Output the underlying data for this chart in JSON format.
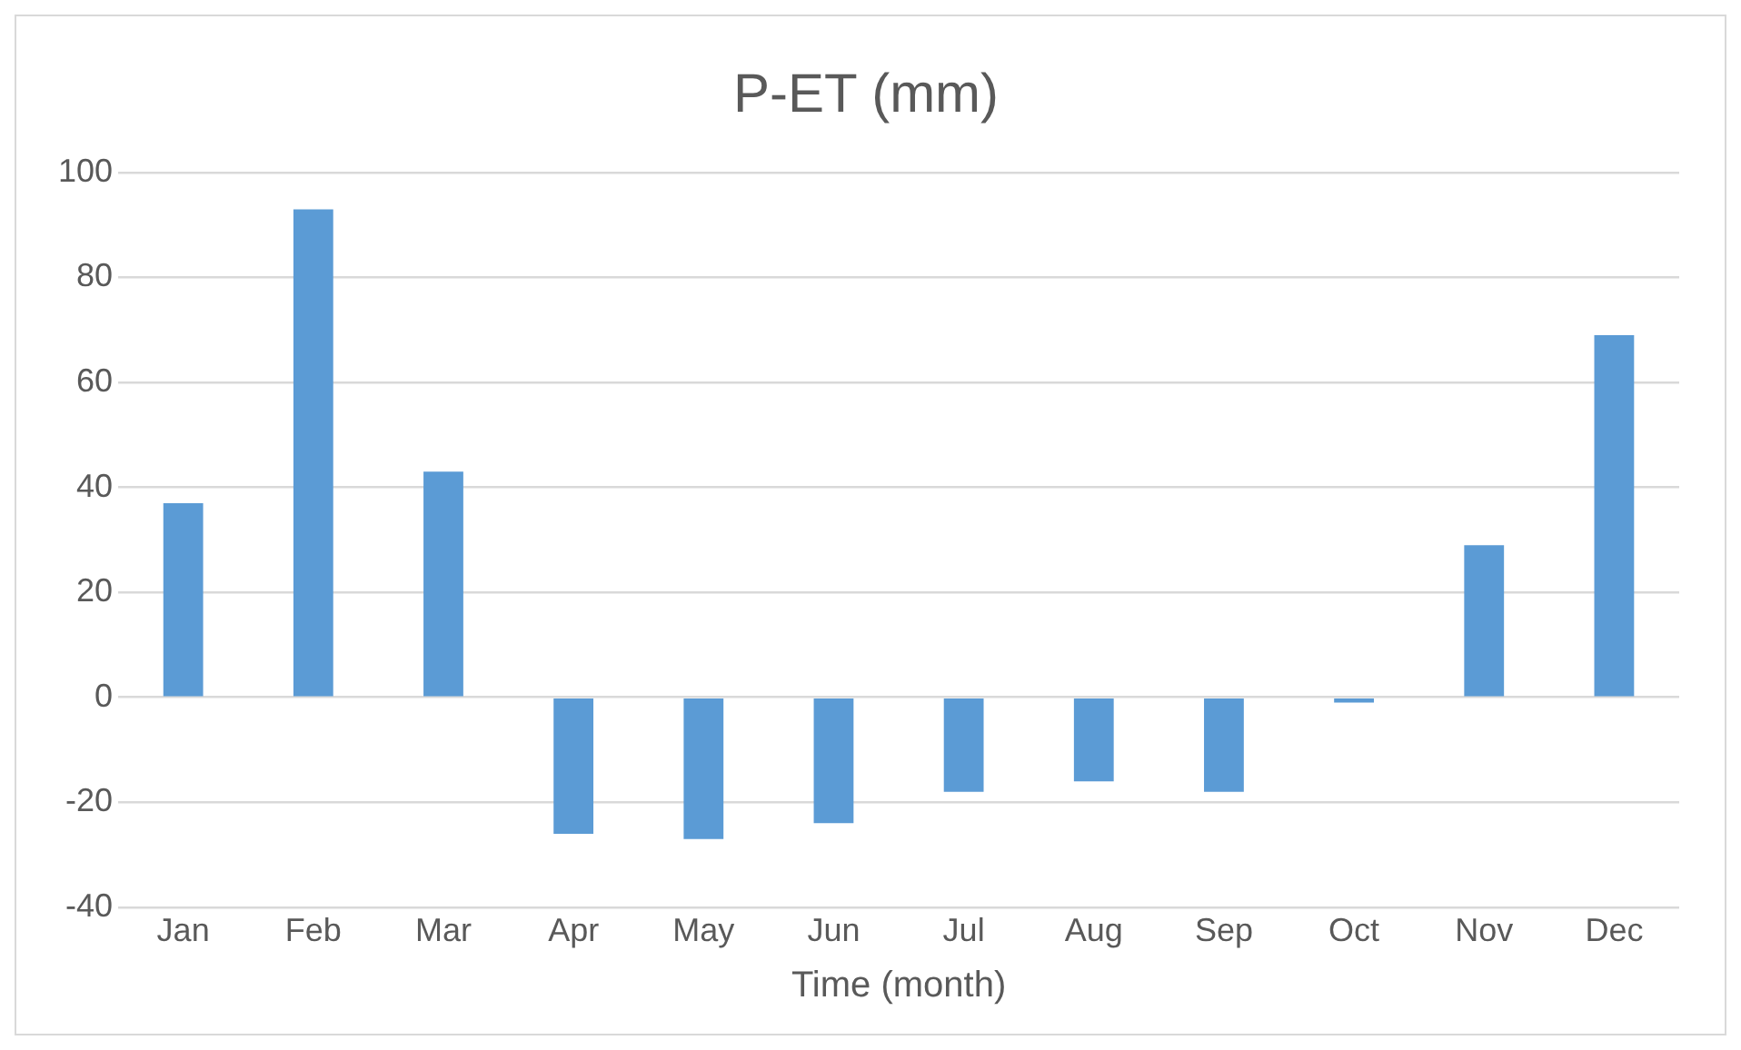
{
  "chart_data": {
    "type": "bar",
    "title": "P-ET (mm)",
    "xlabel": "Time (month)",
    "categories": [
      "Jan",
      "Feb",
      "Mar",
      "Apr",
      "May",
      "Jun",
      "Jul",
      "Aug",
      "Sep",
      "Oct",
      "Nov",
      "Dec"
    ],
    "values": [
      37,
      93,
      43,
      -26,
      -27,
      -24,
      -18,
      -16,
      -18,
      -1,
      29,
      69
    ],
    "color": "#5b9bd5",
    "ylim": [
      -40,
      100
    ],
    "yticks": [
      -40,
      -20,
      0,
      20,
      40,
      60,
      80,
      100
    ],
    "grid": "y",
    "legend": false
  }
}
